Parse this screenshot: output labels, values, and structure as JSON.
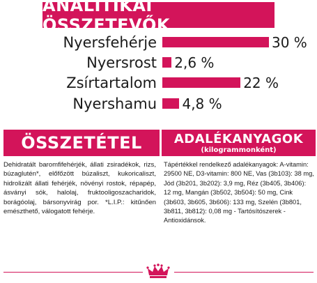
{
  "analytical": {
    "title": "ANALITIKAI ÖSSZETEVŐK",
    "rows": [
      {
        "label": "Nyersfehérje",
        "value": "30 %",
        "percent": 30
      },
      {
        "label": "Nyersrost",
        "value": "2,6 %",
        "percent": 2.6
      },
      {
        "label": "Zsírtartalom",
        "value": "22 %",
        "percent": 22
      },
      {
        "label": "Nyershamu",
        "value": "4,8 %",
        "percent": 4.8
      }
    ]
  },
  "composition": {
    "title": "ÖSSZETÉTEL",
    "text": "Dehidratált baromfifehérjék, állati zsiradékok, rizs, búzaglutén*, előfőzött búzaliszt, kukoricaliszt, hidrolizált állati fehérjék, növényi rostok, répapép, ásványi sók, halolaj, fruktooligoszacharidok, borágóolaj, bársonyvirág por. *L.I.P.: kitűnően emészthető, válogatott fehérje."
  },
  "additives": {
    "title": "ADALÉKANYAGOK",
    "subtitle": "(kilogrammonként)",
    "text": "Tápértékkel rendelkező adalékanyagok: A-vitamin: 29500 NE, D3-vitamin: 800 NE, Vas (3b103): 38 mg, Jód (3b201, 3b202): 3,9 mg, Réz (3b405, 3b406): 12 mg, Mangán (3b502, 3b504): 50 mg, Cink (3b603, 3b605, 3b606): 133 mg, Szelén (3b801, 3b811, 3b812): 0,08 mg - Tartósítószerek - Antioxidánsok."
  },
  "colors": {
    "accent": "#d3145a",
    "text": "#1a1a1a",
    "background": "#ffffff"
  },
  "logo": {
    "icon": "crown-icon"
  }
}
